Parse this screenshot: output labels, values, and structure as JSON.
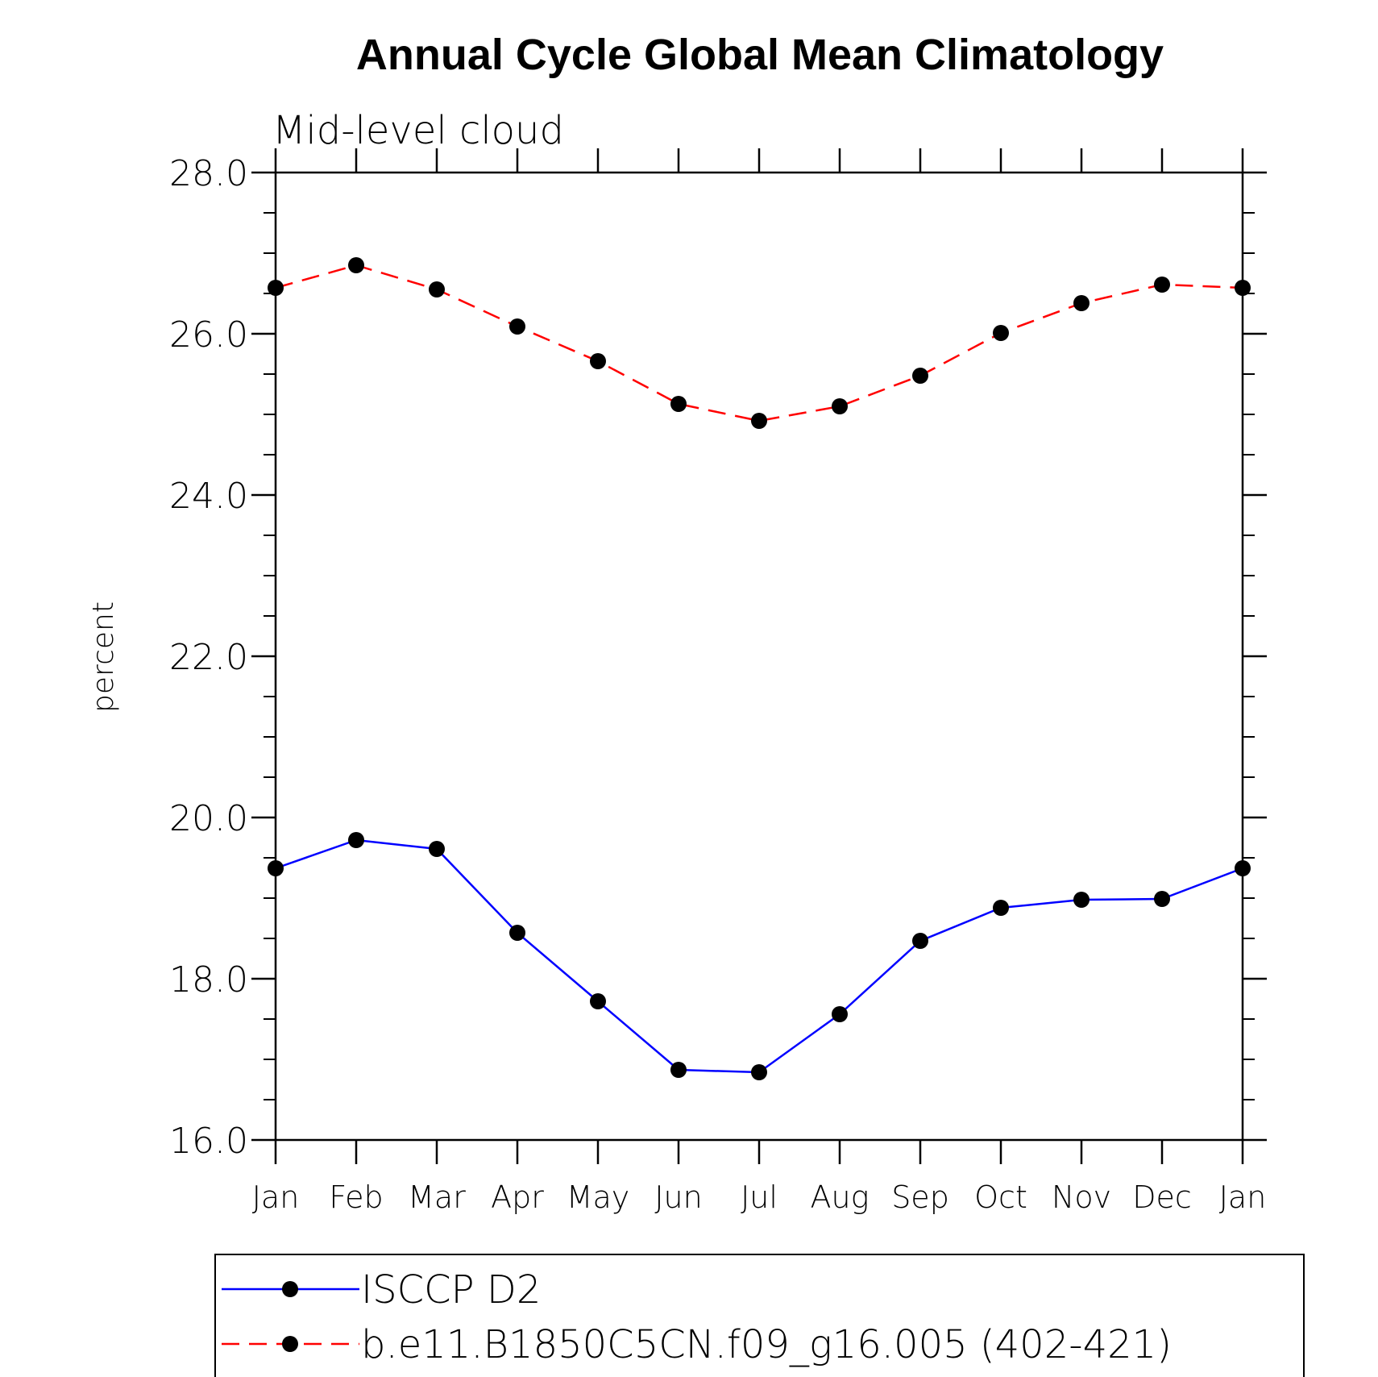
{
  "chart_data": {
    "type": "line",
    "title": "Annual Cycle Global Mean Climatology",
    "subtitle": "Mid-level cloud",
    "xlabel": "",
    "ylabel": "percent",
    "categories": [
      "Jan",
      "Feb",
      "Mar",
      "Apr",
      "May",
      "Jun",
      "Jul",
      "Aug",
      "Sep",
      "Oct",
      "Nov",
      "Dec",
      "Jan"
    ],
    "ylim": [
      16.0,
      28.0
    ],
    "yticks": [
      "16.0",
      "18.0",
      "20.0",
      "22.0",
      "24.0",
      "26.0",
      "28.0"
    ],
    "legend_position": "bottom",
    "series": [
      {
        "name": "ISCCP D2",
        "color": "#0000ff",
        "line_style": "solid",
        "marker": "filled-circle",
        "values": [
          19.37,
          19.72,
          19.61,
          18.57,
          17.72,
          16.87,
          16.84,
          17.56,
          18.47,
          18.88,
          18.98,
          18.99,
          19.37
        ]
      },
      {
        "name": "b.e11.B1850C5CN.f09_g16.005 (402-421)",
        "color": "#ff0000",
        "line_style": "dashed",
        "marker": "filled-circle",
        "values": [
          26.57,
          26.85,
          26.55,
          26.09,
          25.66,
          25.13,
          24.92,
          25.1,
          25.48,
          26.01,
          26.38,
          26.61,
          26.57
        ]
      }
    ]
  }
}
